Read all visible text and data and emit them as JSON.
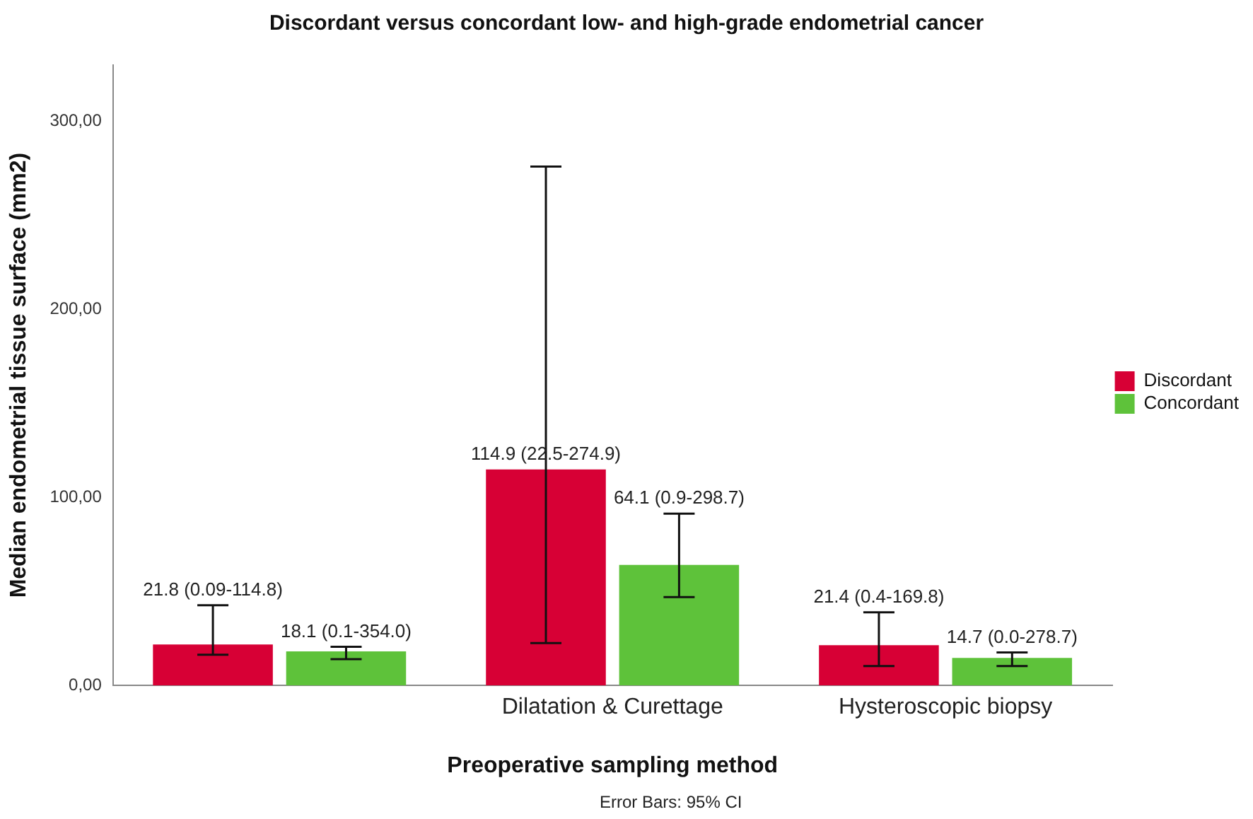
{
  "chart_data": {
    "type": "bar",
    "title": "Discordant versus concordant low- and high-grade endometrial cancer",
    "xlabel": "Preoperative sampling method",
    "ylabel": "Median endometrial tissue surface (mm2)",
    "categories": [
      null,
      "Dilatation & Curettage",
      "Hysteroscopic biopsy"
    ],
    "series": [
      {
        "name": "Discordant",
        "color": "#d70035",
        "values": [
          21.8,
          114.9,
          21.4
        ],
        "errors": [
          [
            16.3,
            42.7
          ],
          [
            22.6,
            276
          ],
          [
            10.3,
            38.9
          ]
        ],
        "value_labels": [
          "21.8 (0.09-114.8)",
          "114.9 (22.5-274.9)",
          "21.4 (0.4-169.8)"
        ]
      },
      {
        "name": "Concordant",
        "color": "#5ec23a",
        "values": [
          18.1,
          64.1,
          14.7
        ],
        "errors": [
          [
            14.0,
            20.6
          ],
          [
            47.0,
            91.4
          ],
          [
            10.3,
            17.6
          ]
        ],
        "value_labels": [
          "18.1 (0.1-354.0)",
          "64.1 (0.9-298.7)",
          "14.7 (0.0-278.7)"
        ]
      }
    ],
    "ylim": [
      0,
      330
    ],
    "yticks": [
      {
        "value": 0,
        "label": "0,00"
      },
      {
        "value": 100,
        "label": "100,00"
      },
      {
        "value": 200,
        "label": "200,00"
      },
      {
        "value": 300,
        "label": "300,00"
      }
    ],
    "grid": false,
    "legend": "right",
    "annotations": [
      "Error Bars: 95% CI"
    ]
  }
}
